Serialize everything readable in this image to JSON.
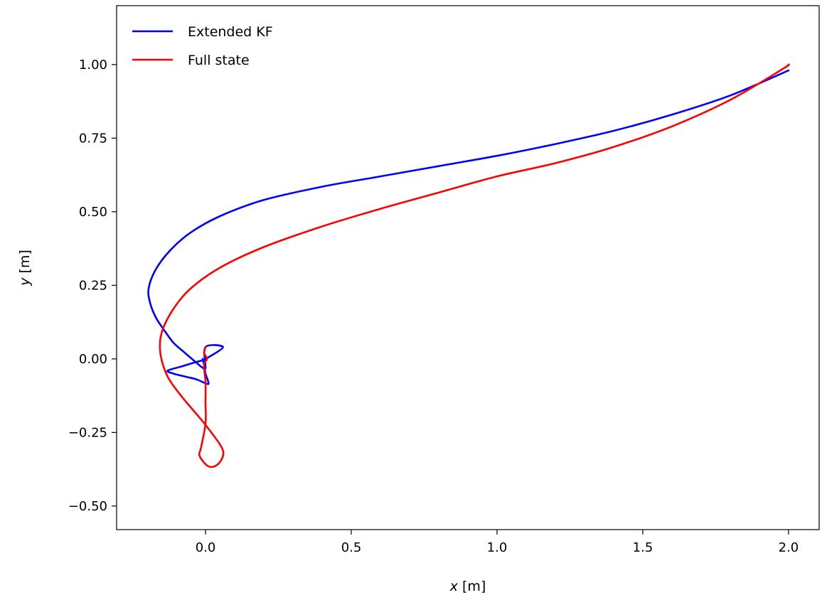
{
  "chart_data": {
    "type": "line",
    "title": "",
    "xlabel": {
      "var": "x",
      "unit": " [m]"
    },
    "ylabel": {
      "var": "y",
      "unit": " [m]"
    },
    "xlim": [
      -0.305,
      2.105
    ],
    "ylim": [
      -0.58,
      1.2
    ],
    "xticks": [
      0.0,
      0.5,
      1.0,
      1.5,
      2.0
    ],
    "xtick_labels": [
      "0.0",
      "0.5",
      "1.0",
      "1.5",
      "2.0"
    ],
    "yticks": [
      -0.5,
      -0.25,
      0.0,
      0.25,
      0.5,
      0.75,
      1.0
    ],
    "ytick_labels": [
      "−0.50",
      "−0.25",
      "0.00",
      "0.25",
      "0.50",
      "0.75",
      "1.00"
    ],
    "grid": false,
    "legend_position": "top-left",
    "series": [
      {
        "name": "Extended KF",
        "color": "#0000ff",
        "x": [
          2.0,
          1.8,
          1.6,
          1.4,
          1.2,
          1.0,
          0.8,
          0.6,
          0.4,
          0.2,
          0.05,
          -0.05,
          -0.12,
          -0.17,
          -0.195,
          -0.19,
          -0.17,
          -0.14,
          -0.11,
          -0.07,
          -0.035,
          -0.01,
          0.0,
          0.0,
          0.06,
          0.0,
          -0.03,
          -0.08,
          -0.13,
          -0.11,
          -0.07,
          -0.03,
          0.005,
          0.01,
          0.0,
          -0.005,
          -0.01
        ],
        "y": [
          0.98,
          0.895,
          0.83,
          0.775,
          0.73,
          0.69,
          0.655,
          0.62,
          0.585,
          0.54,
          0.485,
          0.43,
          0.37,
          0.305,
          0.24,
          0.19,
          0.14,
          0.095,
          0.055,
          0.02,
          -0.01,
          -0.03,
          -0.03,
          0.04,
          0.04,
          0.0,
          -0.01,
          -0.025,
          -0.04,
          -0.05,
          -0.06,
          -0.07,
          -0.085,
          -0.08,
          -0.05,
          -0.02,
          0.0
        ]
      },
      {
        "name": "Full state",
        "color": "#ff0000",
        "x": [
          2.0,
          1.98,
          1.8,
          1.6,
          1.4,
          1.2,
          1.0,
          0.8,
          0.6,
          0.4,
          0.2,
          0.05,
          -0.05,
          -0.11,
          -0.15,
          -0.155,
          -0.13,
          -0.08,
          -0.02,
          0.02,
          0.055,
          0.06,
          0.04,
          0.01,
          -0.02,
          -0.015,
          0.0,
          0.0,
          0.0,
          -0.005,
          0.005,
          -0.005,
          0.0
        ],
        "y": [
          1.0,
          0.985,
          0.88,
          0.79,
          0.72,
          0.665,
          0.62,
          0.565,
          0.51,
          0.45,
          0.38,
          0.31,
          0.24,
          0.17,
          0.09,
          0.02,
          -0.06,
          -0.13,
          -0.2,
          -0.25,
          -0.3,
          -0.33,
          -0.36,
          -0.365,
          -0.33,
          -0.3,
          -0.22,
          -0.15,
          -0.08,
          -0.02,
          0.0,
          0.02,
          0.04
        ]
      }
    ]
  }
}
